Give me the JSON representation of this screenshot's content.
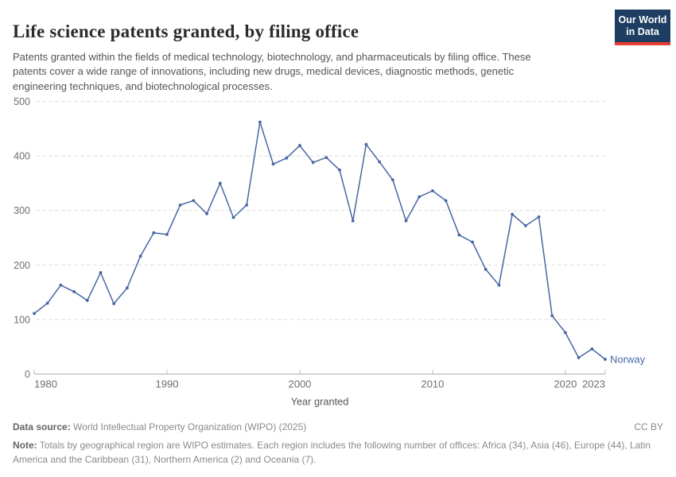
{
  "header": {
    "title": "Life science patents granted, by filing office",
    "subtitle": "Patents granted within the fields of medical technology, biotechnology, and pharmaceuticals by filing office. These patents cover a wide range of innovations, including new drugs, medical devices, diagnostic methods, genetic engineering techniques, and biotechnological processes.",
    "logo": {
      "line1": "Our World",
      "line2": "in Data"
    }
  },
  "chart_data": {
    "type": "line",
    "title": "Life science patents granted, by filing office",
    "xlabel": "Year granted",
    "ylabel": "",
    "x": [
      1980,
      1981,
      1982,
      1983,
      1984,
      1985,
      1986,
      1987,
      1988,
      1989,
      1990,
      1991,
      1992,
      1993,
      1994,
      1995,
      1996,
      1997,
      1998,
      1999,
      2000,
      2001,
      2002,
      2003,
      2004,
      2005,
      2006,
      2007,
      2008,
      2009,
      2010,
      2011,
      2012,
      2013,
      2014,
      2015,
      2016,
      2017,
      2018,
      2019,
      2020,
      2021,
      2022,
      2023
    ],
    "series": [
      {
        "name": "Norway",
        "values": [
          111,
          130,
          163,
          151,
          135,
          186,
          129,
          158,
          216,
          259,
          256,
          310,
          318,
          294,
          350,
          287,
          310,
          462,
          385,
          396,
          419,
          388,
          397,
          374,
          281,
          421,
          389,
          356,
          281,
          325,
          336,
          318,
          255,
          242,
          192,
          163,
          293,
          272,
          288,
          107,
          76,
          30,
          46,
          27
        ]
      }
    ],
    "ylim": [
      0,
      500
    ],
    "yticks": [
      0,
      100,
      200,
      300,
      400,
      500
    ],
    "xticks": [
      1980,
      1990,
      2000,
      2010,
      2020,
      2023
    ],
    "grid": "horizontal-dashed",
    "legend_position": "end-of-line"
  },
  "colors": {
    "line": "#4767a3",
    "logo_bg": "#1d3d63",
    "logo_accent": "#e63e32",
    "grid": "#dedede",
    "axis": "#adadad",
    "tick": "#bdbdbd",
    "tick_label": "#6e6e6e",
    "axis_title": "#555555"
  },
  "footer": {
    "data_source_label": "Data source:",
    "data_source": " World Intellectual Property Organization (WIPO) (2025)",
    "license": "CC BY",
    "note_label": "Note:",
    "note": " Totals by geographical region are WIPO estimates. Each region includes the following number of offices: Africa (34), Asia (46), Europe (44), Latin America and the Caribbean (31), Northern America (2) and Oceania (7)."
  }
}
